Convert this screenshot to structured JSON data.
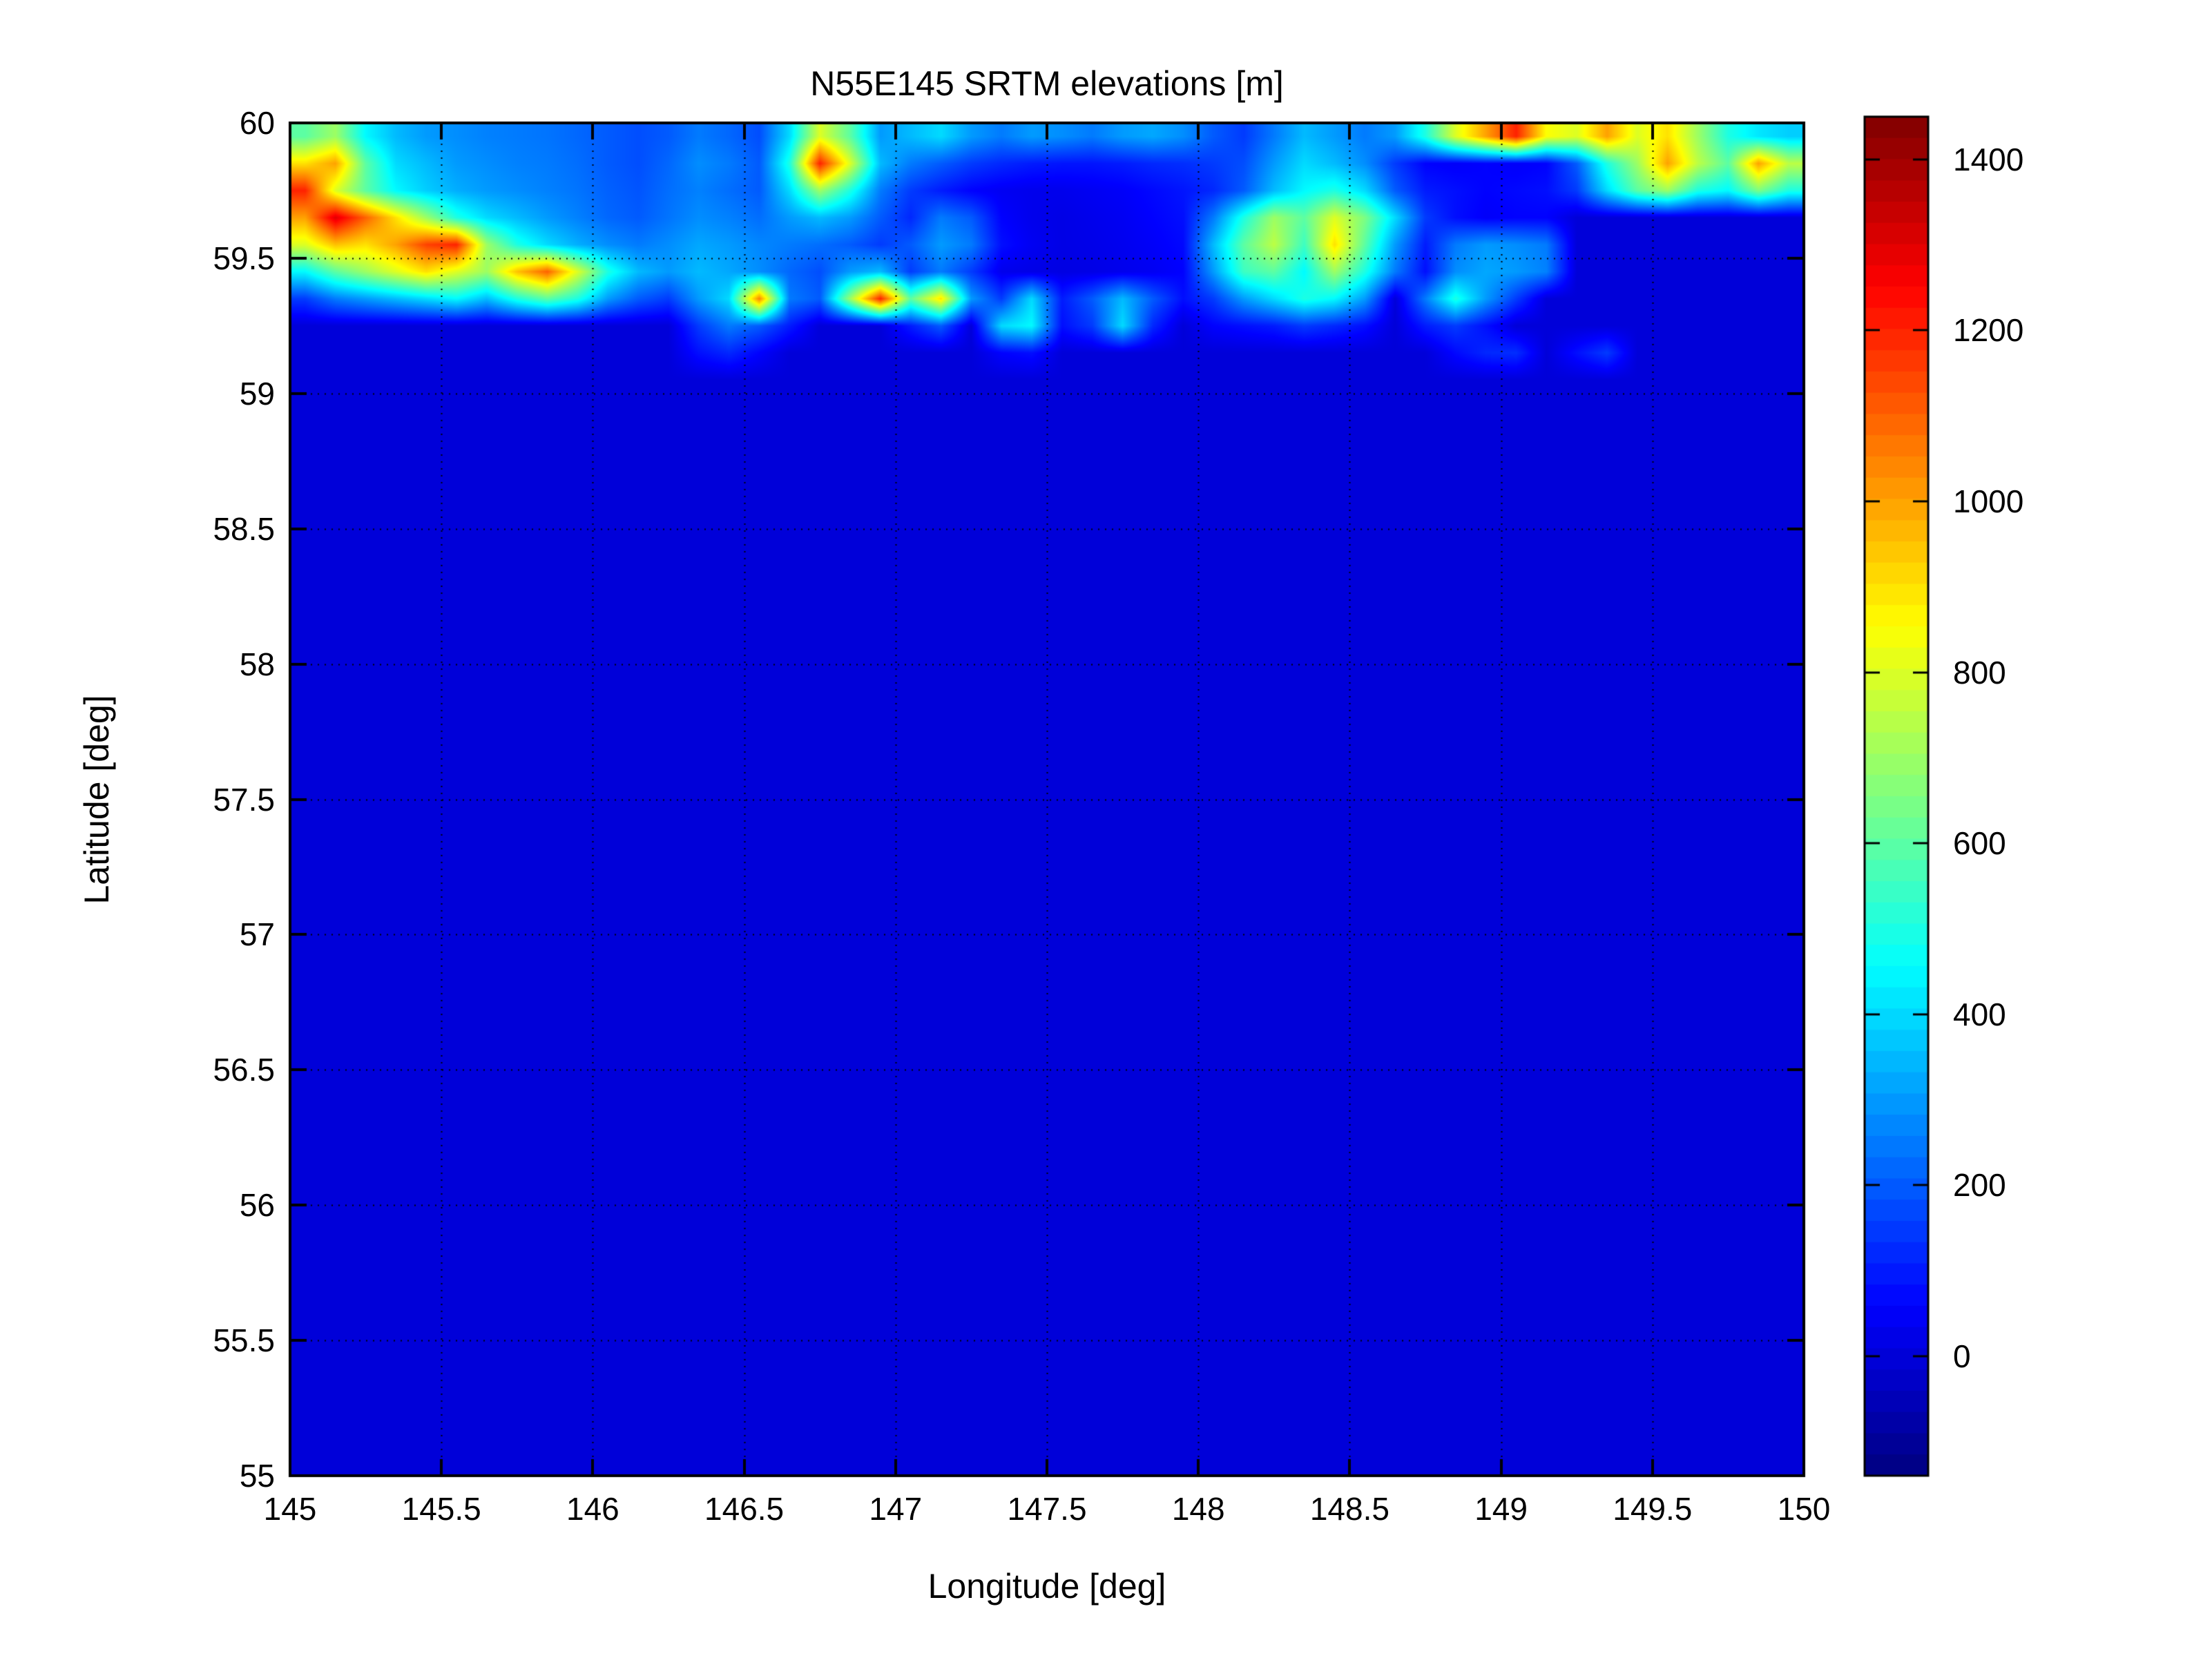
{
  "figure": {
    "title": "N55E145 SRTM elevations [m]",
    "xlabel": "Longitude [deg]",
    "ylabel": "Latitude [deg]"
  },
  "chart_data": {
    "type": "heatmap",
    "title": "N55E145 SRTM elevations [m]",
    "xlabel": "Longitude [deg]",
    "ylabel": "Latitude [deg]",
    "xlim": [
      145,
      150
    ],
    "ylim": [
      55,
      60
    ],
    "grid_on": true,
    "grid_style": "dotted-black",
    "xtick_labels": [
      "145",
      "145.5",
      "146",
      "146.5",
      "147",
      "147.5",
      "148",
      "148.5",
      "149",
      "149.5",
      "150"
    ],
    "ytick_labels": [
      "55",
      "55.5",
      "56",
      "56.5",
      "57",
      "57.5",
      "58",
      "58.5",
      "59",
      "59.5",
      "60"
    ],
    "colorbar": {
      "position": "right",
      "colormap": "jet",
      "n_bands": 64,
      "vmin": -140,
      "vmax": 1450,
      "tick_values": [
        0,
        200,
        400,
        600,
        800,
        1000,
        1200,
        1400
      ],
      "tick_labels": [
        "0",
        "200",
        "400",
        "600",
        "800",
        "1000",
        "1200",
        "1400"
      ]
    },
    "units": "m",
    "ocean_value": 0,
    "grid": {
      "lon_min": 145.0,
      "lon_max": 150.0,
      "ncols": 50,
      "lat_max": 60.0,
      "lat_min_covered": 58.8,
      "nrows": 12,
      "cell_deg": 0.1,
      "note_rows": "rows ordered north (lat 59.95) to south (lat 58.85); values are elevations in meters, 0 = sea",
      "elevations_m": [
        [
          600,
          700,
          450,
          350,
          300,
          280,
          260,
          250,
          240,
          220,
          200,
          180,
          200,
          250,
          220,
          180,
          400,
          800,
          600,
          300,
          350,
          400,
          300,
          250,
          300,
          280,
          250,
          300,
          320,
          280,
          200,
          150,
          250,
          350,
          300,
          250,
          300,
          500,
          800,
          1000,
          1200,
          850,
          800,
          1000,
          800,
          900,
          700,
          500,
          420,
          380
        ],
        [
          900,
          1000,
          600,
          400,
          350,
          300,
          280,
          260,
          250,
          230,
          200,
          180,
          220,
          280,
          250,
          200,
          500,
          1200,
          800,
          350,
          250,
          200,
          150,
          120,
          100,
          90,
          90,
          100,
          120,
          130,
          150,
          180,
          300,
          400,
          350,
          280,
          150,
          60,
          50,
          60,
          50,
          60,
          200,
          500,
          700,
          1000,
          750,
          600,
          1000,
          750
        ],
        [
          1200,
          800,
          600,
          450,
          380,
          330,
          300,
          280,
          260,
          240,
          210,
          190,
          230,
          260,
          230,
          200,
          400,
          700,
          500,
          250,
          150,
          100,
          60,
          40,
          30,
          30,
          40,
          50,
          70,
          90,
          120,
          200,
          350,
          450,
          500,
          400,
          200,
          100,
          80,
          60,
          70,
          80,
          150,
          400,
          600,
          700,
          500,
          450,
          650,
          500
        ],
        [
          1000,
          1300,
          1100,
          900,
          700,
          500,
          400,
          350,
          300,
          260,
          220,
          200,
          240,
          280,
          260,
          230,
          300,
          350,
          300,
          200,
          120,
          250,
          200,
          60,
          30,
          20,
          30,
          40,
          60,
          80,
          250,
          500,
          700,
          600,
          800,
          650,
          400,
          150,
          80,
          50,
          60,
          60,
          0,
          0,
          0,
          0,
          0,
          0,
          0,
          0
        ],
        [
          800,
          950,
          900,
          1000,
          1150,
          1200,
          700,
          500,
          400,
          330,
          280,
          250,
          280,
          320,
          300,
          270,
          250,
          230,
          200,
          150,
          200,
          300,
          250,
          80,
          40,
          20,
          25,
          35,
          50,
          70,
          350,
          600,
          750,
          550,
          900,
          600,
          300,
          100,
          250,
          300,
          280,
          250,
          0,
          0,
          0,
          0,
          0,
          0,
          0,
          0
        ],
        [
          450,
          600,
          700,
          800,
          900,
          800,
          700,
          950,
          1100,
          800,
          500,
          350,
          300,
          350,
          320,
          280,
          220,
          180,
          300,
          350,
          150,
          250,
          150,
          30,
          20,
          15,
          20,
          30,
          40,
          60,
          300,
          550,
          600,
          450,
          700,
          500,
          250,
          80,
          280,
          320,
          300,
          260,
          0,
          0,
          0,
          0,
          0,
          0,
          0,
          0
        ],
        [
          150,
          250,
          300,
          350,
          400,
          450,
          350,
          500,
          600,
          500,
          300,
          200,
          150,
          300,
          400,
          1050,
          250,
          200,
          700,
          1200,
          600,
          900,
          300,
          150,
          400,
          100,
          200,
          350,
          200,
          80,
          150,
          300,
          400,
          500,
          450,
          300,
          0,
          250,
          500,
          300,
          150,
          0,
          0,
          0,
          0,
          0,
          0,
          0,
          0,
          0
        ],
        [
          0,
          0,
          0,
          0,
          0,
          0,
          0,
          0,
          0,
          0,
          0,
          0,
          0,
          150,
          250,
          200,
          100,
          0,
          0,
          0,
          100,
          200,
          0,
          400,
          450,
          80,
          150,
          400,
          120,
          0,
          60,
          80,
          100,
          150,
          120,
          80,
          0,
          100,
          150,
          80,
          0,
          0,
          0,
          0,
          0,
          0,
          0,
          0,
          0,
          0
        ],
        [
          0,
          0,
          0,
          0,
          0,
          0,
          0,
          0,
          0,
          0,
          0,
          0,
          0,
          80,
          120,
          60,
          0,
          0,
          0,
          0,
          0,
          0,
          0,
          60,
          80,
          0,
          0,
          0,
          0,
          0,
          0,
          0,
          0,
          0,
          0,
          0,
          0,
          0,
          70,
          120,
          130,
          0,
          80,
          150,
          0,
          0,
          0,
          0,
          0,
          0
        ],
        [
          0,
          0,
          0,
          0,
          0,
          0,
          0,
          0,
          0,
          0,
          0,
          0,
          0,
          0,
          0,
          0,
          0,
          0,
          0,
          0,
          0,
          0,
          0,
          0,
          0,
          0,
          0,
          0,
          0,
          0,
          0,
          0,
          0,
          0,
          0,
          0,
          0,
          0,
          0,
          0,
          0,
          0,
          0,
          0,
          0,
          0,
          0,
          0,
          0,
          0
        ],
        [
          0,
          0,
          0,
          0,
          0,
          0,
          0,
          0,
          0,
          0,
          0,
          0,
          0,
          0,
          0,
          0,
          0,
          0,
          0,
          0,
          0,
          0,
          0,
          0,
          0,
          0,
          0,
          0,
          0,
          0,
          0,
          0,
          0,
          0,
          0,
          0,
          0,
          0,
          0,
          0,
          0,
          0,
          0,
          0,
          0,
          0,
          0,
          0,
          0,
          0
        ],
        [
          0,
          0,
          0,
          0,
          0,
          0,
          0,
          0,
          0,
          0,
          0,
          0,
          0,
          0,
          0,
          0,
          0,
          0,
          0,
          0,
          0,
          0,
          0,
          0,
          0,
          0,
          0,
          0,
          0,
          0,
          0,
          0,
          0,
          0,
          0,
          0,
          0,
          0,
          0,
          0,
          0,
          0,
          0,
          0,
          0,
          0,
          0,
          0,
          0,
          0
        ]
      ]
    }
  },
  "colors": {
    "background": "#ffffff",
    "axis": "#000000",
    "text": "#000000",
    "ocean_blue": "#0000D9"
  }
}
